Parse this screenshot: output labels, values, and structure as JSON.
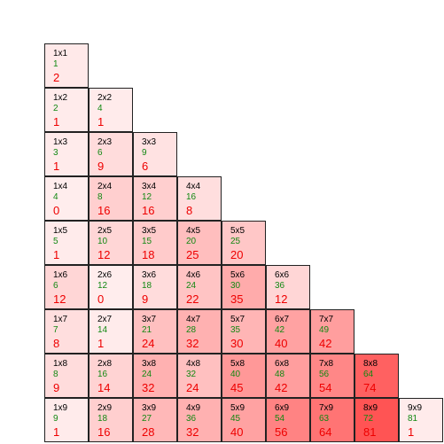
{
  "colors": {
    "label": "#000000",
    "product": "#118811",
    "value": "#ee0000",
    "fill": "#ff0000"
  },
  "value_max": 81,
  "rows": [
    [
      {
        "label": "1x1",
        "product": "1",
        "value": "2"
      }
    ],
    [
      {
        "label": "1x2",
        "product": "2",
        "value": "1"
      },
      {
        "label": "2x2",
        "product": "4",
        "value": "1"
      }
    ],
    [
      {
        "label": "1x3",
        "product": "3",
        "value": "1"
      },
      {
        "label": "2x3",
        "product": "6",
        "value": "9"
      },
      {
        "label": "3x3",
        "product": "9",
        "value": "6"
      }
    ],
    [
      {
        "label": "1x4",
        "product": "4",
        "value": "0"
      },
      {
        "label": "2x4",
        "product": "8",
        "value": "16"
      },
      {
        "label": "3x4",
        "product": "12",
        "value": "16"
      },
      {
        "label": "4x4",
        "product": "16",
        "value": "8"
      }
    ],
    [
      {
        "label": "1x5",
        "product": "5",
        "value": "1"
      },
      {
        "label": "2x5",
        "product": "10",
        "value": "12"
      },
      {
        "label": "3x5",
        "product": "15",
        "value": "18"
      },
      {
        "label": "4x5",
        "product": "20",
        "value": "25"
      },
      {
        "label": "5x5",
        "product": "25",
        "value": "20"
      }
    ],
    [
      {
        "label": "1x6",
        "product": "6",
        "value": "12"
      },
      {
        "label": "2x6",
        "product": "12",
        "value": "0"
      },
      {
        "label": "3x6",
        "product": "18",
        "value": "9"
      },
      {
        "label": "4x6",
        "product": "24",
        "value": "22"
      },
      {
        "label": "5x6",
        "product": "30",
        "value": "35"
      },
      {
        "label": "6x6",
        "product": "36",
        "value": "12"
      }
    ],
    [
      {
        "label": "1x7",
        "product": "7",
        "value": "8"
      },
      {
        "label": "2x7",
        "product": "14",
        "value": "1"
      },
      {
        "label": "3x7",
        "product": "21",
        "value": "24"
      },
      {
        "label": "4x7",
        "product": "28",
        "value": "32"
      },
      {
        "label": "5x7",
        "product": "35",
        "value": "30"
      },
      {
        "label": "6x7",
        "product": "42",
        "value": "40"
      },
      {
        "label": "7x7",
        "product": "49",
        "value": "42"
      }
    ],
    [
      {
        "label": "1x8",
        "product": "8",
        "value": "9"
      },
      {
        "label": "2x8",
        "product": "16",
        "value": "14"
      },
      {
        "label": "3x8",
        "product": "24",
        "value": "32"
      },
      {
        "label": "4x8",
        "product": "32",
        "value": "24"
      },
      {
        "label": "5x8",
        "product": "40",
        "value": "45"
      },
      {
        "label": "6x8",
        "product": "48",
        "value": "42"
      },
      {
        "label": "7x8",
        "product": "56",
        "value": "54"
      },
      {
        "label": "8x8",
        "product": "64",
        "value": "74"
      }
    ],
    [
      {
        "label": "1x9",
        "product": "9",
        "value": "1"
      },
      {
        "label": "2x9",
        "product": "18",
        "value": "16"
      },
      {
        "label": "3x9",
        "product": "27",
        "value": "28"
      },
      {
        "label": "4x9",
        "product": "36",
        "value": "32"
      },
      {
        "label": "5x9",
        "product": "45",
        "value": "40"
      },
      {
        "label": "6x9",
        "product": "54",
        "value": "56"
      },
      {
        "label": "7x9",
        "product": "63",
        "value": "64"
      },
      {
        "label": "8x9",
        "product": "72",
        "value": "81"
      },
      {
        "label": "9x9",
        "product": "81",
        "value": "1"
      }
    ]
  ]
}
